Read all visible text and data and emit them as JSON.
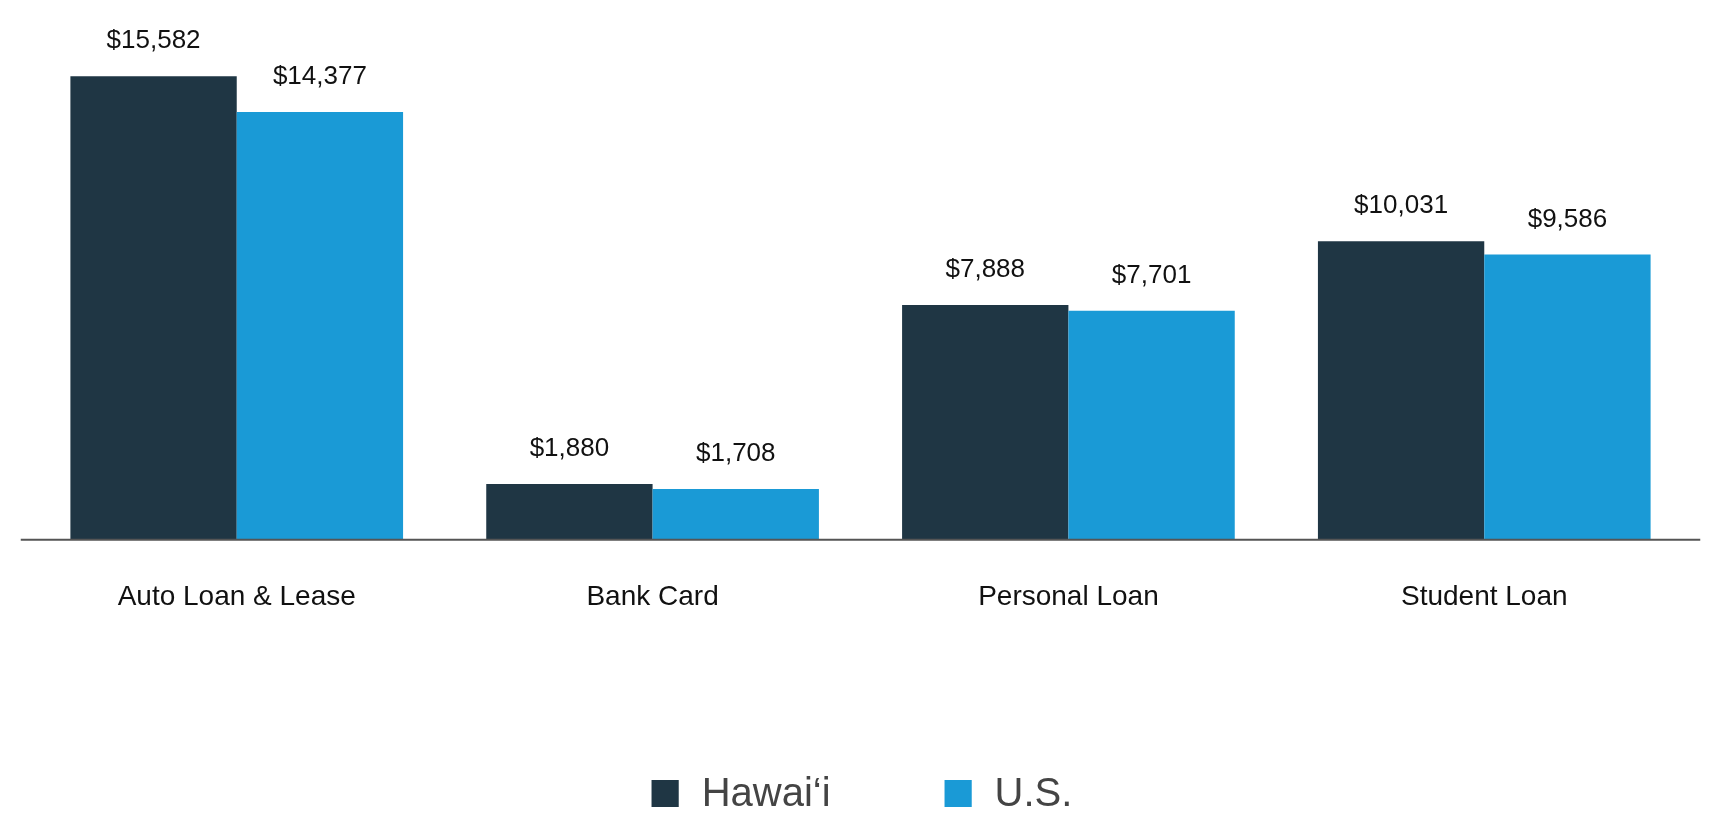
{
  "chart_data": {
    "type": "bar",
    "categories": [
      "Auto Loan & Lease",
      "Bank Card",
      "Personal Loan",
      "Student Loan"
    ],
    "series": [
      {
        "name": "Hawai‘i",
        "color": "#1f3644",
        "values": [
          15582,
          1880,
          7888,
          10031
        ],
        "value_labels": [
          "$15,582",
          "$1,880",
          "$7,888",
          "$10,031"
        ]
      },
      {
        "name": "U.S.",
        "color": "#1a9ad6",
        "values": [
          14377,
          1708,
          7701,
          9586
        ],
        "value_labels": [
          "$14,377",
          "$1,708",
          "$7,701",
          "$9,586"
        ]
      }
    ],
    "legend": "bottom",
    "grid": false
  }
}
